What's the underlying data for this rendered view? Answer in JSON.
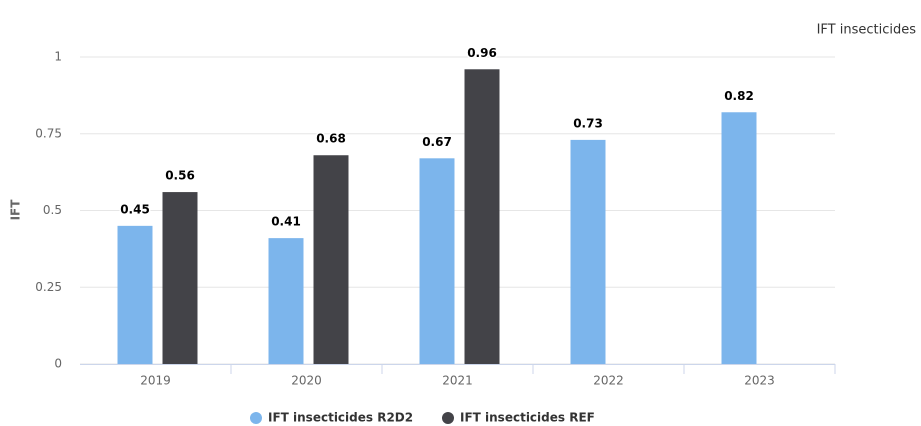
{
  "chart_data": {
    "type": "bar",
    "title": "IFT insecticides",
    "y_label": "IFT",
    "categories": [
      "2019",
      "2020",
      "2021",
      "2022",
      "2023"
    ],
    "series": [
      {
        "name": "IFT insecticides R2D2",
        "color": "#7cb5ec",
        "values": [
          0.45,
          0.41,
          0.67,
          0.73,
          0.82
        ]
      },
      {
        "name": "IFT insecticides REF",
        "color": "#434348",
        "values": [
          0.56,
          0.68,
          0.96,
          null,
          null
        ]
      }
    ],
    "ylim": [
      0,
      1
    ],
    "yticks": [
      0,
      0.25,
      0.5,
      0.75,
      1
    ],
    "grid": true,
    "legend": "bottom"
  }
}
